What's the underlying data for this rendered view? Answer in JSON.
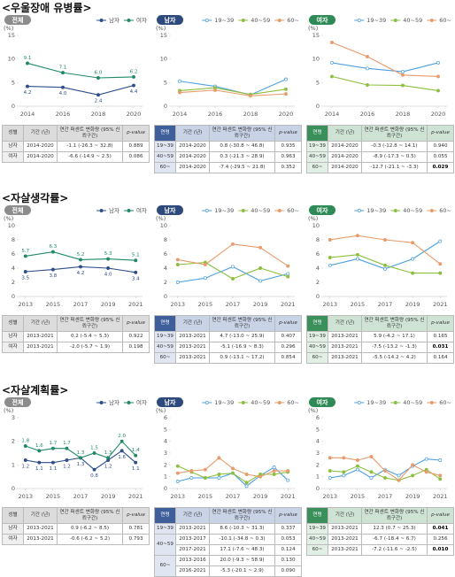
{
  "sections": [
    {
      "title": "<우울장애 유병률>",
      "tables": [
        {
          "header": [
            "성별",
            "기간 (년)",
            "연간 퍼센트 변화량 (95% 신뢰구간)",
            "p-value"
          ],
          "groups": [
            {
              "label": "남자",
              "rows": [
                [
                  "2014-2020",
                  "-1.1 (-26.3 ~ 32.8)",
                  "0.889"
                ]
              ]
            },
            {
              "label": "여자",
              "rows": [
                [
                  "2014-2020",
                  "-6.6 (-14.9 ~ 2.5)",
                  "0.086"
                ]
              ]
            }
          ]
        },
        {
          "header": [
            "연령",
            "기간 (년)",
            "연간 퍼센트 변화량 (95% 신뢰구간)",
            "p-value"
          ],
          "groups": [
            {
              "label": "19~39",
              "rows": [
                [
                  "2014-2020",
                  "0.8 (-30.8 ~ 46.8)",
                  "0.935"
                ]
              ]
            },
            {
              "label": "40~59",
              "rows": [
                [
                  "2014-2020",
                  "0.3 (-21.3 ~ 28.9)",
                  "0.963"
                ]
              ]
            },
            {
              "label": "60~",
              "rows": [
                [
                  "2014-2020",
                  "-7.4 (-29.5 ~ 21.8)",
                  "0.352"
                ]
              ]
            }
          ]
        },
        {
          "header": [
            "연령",
            "기간 (년)",
            "연간 퍼센트 변화량 (95% 신뢰구간)",
            "p-value"
          ],
          "groups": [
            {
              "label": "19~39",
              "rows": [
                [
                  "2014-2020",
                  "-0.3 (-12.8 ~ 14.1)",
                  "0.940"
                ]
              ]
            },
            {
              "label": "40~59",
              "rows": [
                [
                  "2014-2020",
                  "-8.9 (-17.3 ~ 0.5)",
                  "0.055"
                ]
              ]
            },
            {
              "label": "60~",
              "rows": [
                [
                  "2014-2020",
                  "-12.7 (-21.1 ~ -3.3)",
                  "0.029"
                ]
              ]
            }
          ]
        }
      ]
    },
    {
      "title": "<자살생각률>",
      "tables": [
        {
          "header": [
            "성별",
            "기간 (년)",
            "연간 퍼센트 변화량 (95% 신뢰구간)",
            "p-value"
          ],
          "groups": [
            {
              "label": "남자",
              "rows": [
                [
                  "2013-2021",
                  "0.2 (-5.4 ~ 5.3)",
                  "0.922"
                ]
              ]
            },
            {
              "label": "여자",
              "rows": [
                [
                  "2013-2021",
                  "-2.0 (-5.7 ~ 1.9)",
                  "0.198"
                ]
              ]
            }
          ]
        },
        {
          "header": [
            "연령",
            "기간 (년)",
            "연간 퍼센트 변화량 (95% 신뢰구간)",
            "p-value"
          ],
          "groups": [
            {
              "label": "19~39",
              "rows": [
                [
                  "2013-2021",
                  "4.7 (-13.0 ~ 25.9)",
                  "0.407"
                ]
              ]
            },
            {
              "label": "40~59",
              "rows": [
                [
                  "2013-2021",
                  "-5.1 (-16.9 ~ 8.3)",
                  "0.296"
                ]
              ]
            },
            {
              "label": "60~",
              "rows": [
                [
                  "2013-2021",
                  "0.9 (-13.1 ~ 17.2)",
                  "0.854"
                ]
              ]
            }
          ]
        },
        {
          "header": [
            "연령",
            "기간 (년)",
            "연간 퍼센트 변화량 (95% 신뢰구간)",
            "p-value"
          ],
          "groups": [
            {
              "label": "19~39",
              "rows": [
                [
                  "2013-2021",
                  "5.9 (-4.2 ~ 17.1)",
                  "0.165"
                ]
              ]
            },
            {
              "label": "40~59",
              "rows": [
                [
                  "2013-2021",
                  "-7.5 (-13.2 ~ -1.3)",
                  "0.031"
                ]
              ]
            },
            {
              "label": "60~",
              "rows": [
                [
                  "2013-2021",
                  "-5.5 (-14.2 ~ 4.2)",
                  "0.164"
                ]
              ]
            }
          ]
        }
      ]
    },
    {
      "title": "<자살계획률>",
      "tables": [
        {
          "header": [
            "성별",
            "기간 (년)",
            "연간 퍼센트 변화량 (95% 신뢰구간)",
            "p-value"
          ],
          "groups": [
            {
              "label": "남자",
              "rows": [
                [
                  "2013-2021",
                  "0.9 (-6.2 ~ 8.5)",
                  "0.781"
                ]
              ]
            },
            {
              "label": "여자",
              "rows": [
                [
                  "2013-2021",
                  "-0.6 (-6.2 ~ 5.2)",
                  "0.793"
                ]
              ]
            }
          ]
        },
        {
          "header": [
            "연령",
            "기간 (년)",
            "연간 퍼센트 변화량 (95% 신뢰구간)",
            "p-value"
          ],
          "groups": [
            {
              "label": "19~39",
              "rows": [
                [
                  "2013-2021",
                  "8.6 (-10.3 ~ 31.3)",
                  "0.337"
                ]
              ]
            },
            {
              "label": "40~59",
              "rows": [
                [
                  "2013-2017",
                  "-10.1 (-34.8 ~ 0.3)",
                  "0.053"
                ],
                [
                  "2017-2021",
                  "17.1 (-7.6 ~ 48.3)",
                  "0.124"
                ]
              ]
            },
            {
              "label": "60~",
              "rows": [
                [
                  "2013-2016",
                  "20.0 (-9.3 ~ 58.9)",
                  "0.130"
                ],
                [
                  "2016-2021",
                  "-5.3 (-20.1 ~ 2.9)",
                  "0.090"
                ]
              ]
            }
          ]
        },
        {
          "header": [
            "연령",
            "기간 (년)",
            "연간 퍼센트 변화량 (95% 신뢰구간)",
            "p-value"
          ],
          "groups": [
            {
              "label": "19~39",
              "rows": [
                [
                  "2013-2021",
                  "12.3 (0.7 ~ 25.3)",
                  "0.041"
                ]
              ]
            },
            {
              "label": "40~59",
              "rows": [
                [
                  "2013-2021",
                  "-6.7 (-18.4 ~ 6.7)",
                  "0.256"
                ]
              ]
            },
            {
              "label": "60~",
              "rows": [
                [
                  "2013-2021",
                  "-7.2 (-11.6 ~ -2.5)",
                  "0.010"
                ]
              ]
            }
          ]
        }
      ]
    }
  ],
  "chart_data": [
    {
      "type": "line",
      "title": "전체",
      "ylabel": "(%)",
      "x": [
        2014,
        2016,
        2018,
        2020
      ],
      "xlim": [
        2013.5,
        2020.5
      ],
      "xticks": [
        2014,
        2016,
        2018,
        2020
      ],
      "ylim": [
        0,
        15
      ],
      "yticks": [
        0,
        5,
        10,
        15
      ],
      "grid": false,
      "series": [
        {
          "name": "남자",
          "color": "#2d4d8c",
          "values": [
            4.2,
            4.0,
            2.4,
            4.4
          ],
          "value_labels": [
            "4.2",
            "4.0",
            "2.4",
            "4.4"
          ]
        },
        {
          "name": "여자",
          "color": "#1e8a64",
          "values": [
            9.1,
            7.1,
            6.0,
            6.2
          ],
          "value_labels": [
            "9.1",
            "7.1",
            "6.0",
            "6.2"
          ]
        }
      ]
    },
    {
      "type": "line",
      "title": "남자",
      "ylabel": "(%)",
      "x": [
        2014,
        2016,
        2018,
        2020
      ],
      "xlim": [
        2013.5,
        2020.5
      ],
      "xticks": [
        2014,
        2016,
        2018,
        2020
      ],
      "ylim": [
        0,
        15
      ],
      "yticks": [
        0,
        5,
        10,
        15
      ],
      "grid": false,
      "series": [
        {
          "name": "19~39",
          "color": "#4b9fe0",
          "marker": "open",
          "values": [
            5.3,
            4.2,
            2.4,
            5.7
          ]
        },
        {
          "name": "40~59",
          "color": "#8cbf3f",
          "values": [
            3.3,
            3.9,
            2.5,
            3.6
          ]
        },
        {
          "name": "60~",
          "color": "#e89b6b",
          "values": [
            2.9,
            3.4,
            2.2,
            2.6
          ]
        }
      ]
    },
    {
      "type": "line",
      "title": "여자",
      "ylabel": "(%)",
      "x": [
        2014,
        2016,
        2018,
        2020
      ],
      "xlim": [
        2013.5,
        2020.5
      ],
      "xticks": [
        2014,
        2016,
        2018,
        2020
      ],
      "ylim": [
        0,
        15
      ],
      "yticks": [
        0,
        5,
        10,
        15
      ],
      "grid": false,
      "series": [
        {
          "name": "19~39",
          "color": "#4b9fe0",
          "marker": "open",
          "values": [
            9.2,
            8.0,
            7.3,
            9.2
          ]
        },
        {
          "name": "40~59",
          "color": "#8cbf3f",
          "values": [
            6.3,
            4.5,
            4.4,
            3.3
          ]
        },
        {
          "name": "60~",
          "color": "#e89b6b",
          "values": [
            13.5,
            10.5,
            6.6,
            6.3
          ]
        }
      ]
    },
    {
      "type": "line",
      "title": "전체",
      "ylabel": "(%)",
      "x": [
        2013,
        2015,
        2017,
        2019,
        2021
      ],
      "xlim": [
        2012.5,
        2021.5
      ],
      "xticks": [
        2013,
        2015,
        2017,
        2019,
        2021
      ],
      "ylim": [
        0,
        10
      ],
      "yticks": [
        0,
        2,
        4,
        6,
        8,
        10
      ],
      "grid": false,
      "series": [
        {
          "name": "남자",
          "color": "#2d4d8c",
          "values": [
            3.5,
            3.8,
            4.2,
            4.0,
            3.4
          ],
          "value_labels": [
            "3.5",
            "3.8",
            "4.2",
            "4.0",
            "3.4"
          ]
        },
        {
          "name": "여자",
          "color": "#1e8a64",
          "values": [
            5.7,
            6.3,
            5.2,
            5.3,
            5.1
          ],
          "value_labels": [
            "5.7",
            "6.3",
            "5.2",
            "5.3",
            "5.1"
          ]
        }
      ]
    },
    {
      "type": "line",
      "title": "남자",
      "ylabel": "(%)",
      "x": [
        2013,
        2015,
        2017,
        2019,
        2021
      ],
      "xlim": [
        2012.5,
        2021.5
      ],
      "xticks": [
        2013,
        2015,
        2017,
        2019,
        2021
      ],
      "ylim": [
        0,
        10
      ],
      "yticks": [
        0,
        2,
        4,
        6,
        8,
        10
      ],
      "grid": false,
      "series": [
        {
          "name": "19~39",
          "color": "#4b9fe0",
          "marker": "open",
          "values": [
            2.0,
            2.6,
            4.2,
            2.2,
            3.2
          ]
        },
        {
          "name": "40~59",
          "color": "#8cbf3f",
          "values": [
            4.5,
            4.8,
            2.5,
            4.0,
            2.8
          ]
        },
        {
          "name": "60~",
          "color": "#e89b6b",
          "values": [
            5.2,
            4.5,
            7.4,
            6.9,
            4.3
          ]
        }
      ]
    },
    {
      "type": "line",
      "title": "여자",
      "ylabel": "(%)",
      "x": [
        2013,
        2015,
        2017,
        2019,
        2021
      ],
      "xlim": [
        2012.5,
        2021.5
      ],
      "xticks": [
        2013,
        2015,
        2017,
        2019,
        2021
      ],
      "ylim": [
        0,
        10
      ],
      "yticks": [
        0,
        2,
        4,
        6,
        8,
        10
      ],
      "grid": false,
      "series": [
        {
          "name": "19~39",
          "color": "#4b9fe0",
          "marker": "open",
          "values": [
            4.4,
            5.3,
            3.9,
            5.3,
            7.8
          ]
        },
        {
          "name": "40~59",
          "color": "#8cbf3f",
          "values": [
            5.5,
            5.9,
            4.4,
            3.3,
            3.3
          ]
        },
        {
          "name": "60~",
          "color": "#e89b6b",
          "values": [
            8.0,
            8.6,
            8.0,
            7.6,
            4.6
          ]
        }
      ]
    },
    {
      "type": "line",
      "title": "전체",
      "ylabel": "(%)",
      "x": [
        2013,
        2014,
        2015,
        2016,
        2017,
        2018,
        2019,
        2020,
        2021
      ],
      "xlim": [
        2012.5,
        2021.5
      ],
      "xticks": [
        2013,
        2015,
        2017,
        2019,
        2021
      ],
      "ylim": [
        0,
        3
      ],
      "yticks": [
        0,
        1,
        2,
        3
      ],
      "grid": false,
      "series": [
        {
          "name": "남자",
          "color": "#2d4d8c",
          "values": [
            1.2,
            1.1,
            1.1,
            1.2,
            1.3,
            0.8,
            1.2,
            1.6,
            1.1
          ],
          "value_labels": [
            "1.2",
            "1.1",
            "1.1",
            "1.2",
            "1.3",
            "0.8",
            "1.2",
            "1.6",
            "1.1"
          ]
        },
        {
          "name": "여자",
          "color": "#1e8a64",
          "values": [
            1.8,
            1.6,
            1.7,
            1.7,
            1.3,
            1.5,
            1.3,
            2.0,
            1.4
          ],
          "value_labels": [
            "1.8",
            "1.6",
            "1.7",
            "1.7",
            "1.3",
            "1.5",
            "1.3",
            "2.0",
            "1.4"
          ]
        }
      ]
    },
    {
      "type": "line",
      "title": "남자",
      "ylabel": "(%)",
      "x": [
        2013,
        2014,
        2015,
        2016,
        2017,
        2018,
        2019,
        2020,
        2021
      ],
      "xlim": [
        2012.5,
        2021.5
      ],
      "xticks": [
        2013,
        2015,
        2017,
        2019,
        2021
      ],
      "ylim": [
        0,
        6
      ],
      "yticks": [
        0,
        1,
        2,
        3,
        4,
        5,
        6
      ],
      "grid": false,
      "series": [
        {
          "name": "19~39",
          "color": "#4b9fe0",
          "marker": "open",
          "values": [
            0.6,
            0.9,
            0.9,
            0.9,
            1.3,
            0.2,
            1.1,
            1.8,
            0.7
          ]
        },
        {
          "name": "40~59",
          "color": "#8cbf3f",
          "values": [
            1.9,
            1.4,
            0.9,
            1.2,
            1.3,
            0.5,
            1.2,
            1.2,
            1.4
          ]
        },
        {
          "name": "60~",
          "color": "#e89b6b",
          "values": [
            1.3,
            1.5,
            1.6,
            2.6,
            1.7,
            1.2,
            1.0,
            1.5,
            1.5
          ]
        }
      ]
    },
    {
      "type": "line",
      "title": "여자",
      "ylabel": "(%)",
      "x": [
        2013,
        2014,
        2015,
        2016,
        2017,
        2018,
        2019,
        2020,
        2021
      ],
      "xlim": [
        2012.5,
        2021.5
      ],
      "xticks": [
        2013,
        2015,
        2017,
        2019,
        2021
      ],
      "ylim": [
        0,
        6
      ],
      "yticks": [
        0,
        1,
        2,
        3,
        4,
        5,
        6
      ],
      "grid": false,
      "series": [
        {
          "name": "19~39",
          "color": "#4b9fe0",
          "marker": "open",
          "values": [
            0.9,
            1.1,
            1.6,
            0.9,
            1.6,
            1.1,
            1.9,
            2.5,
            2.4
          ]
        },
        {
          "name": "40~59",
          "color": "#8cbf3f",
          "values": [
            1.5,
            1.4,
            1.9,
            1.4,
            0.9,
            0.7,
            1.1,
            1.6,
            0.8
          ]
        },
        {
          "name": "60~",
          "color": "#e89b6b",
          "values": [
            2.6,
            2.6,
            2.4,
            2.7,
            1.5,
            0.7,
            2.0,
            1.4,
            1.1
          ]
        }
      ]
    }
  ]
}
